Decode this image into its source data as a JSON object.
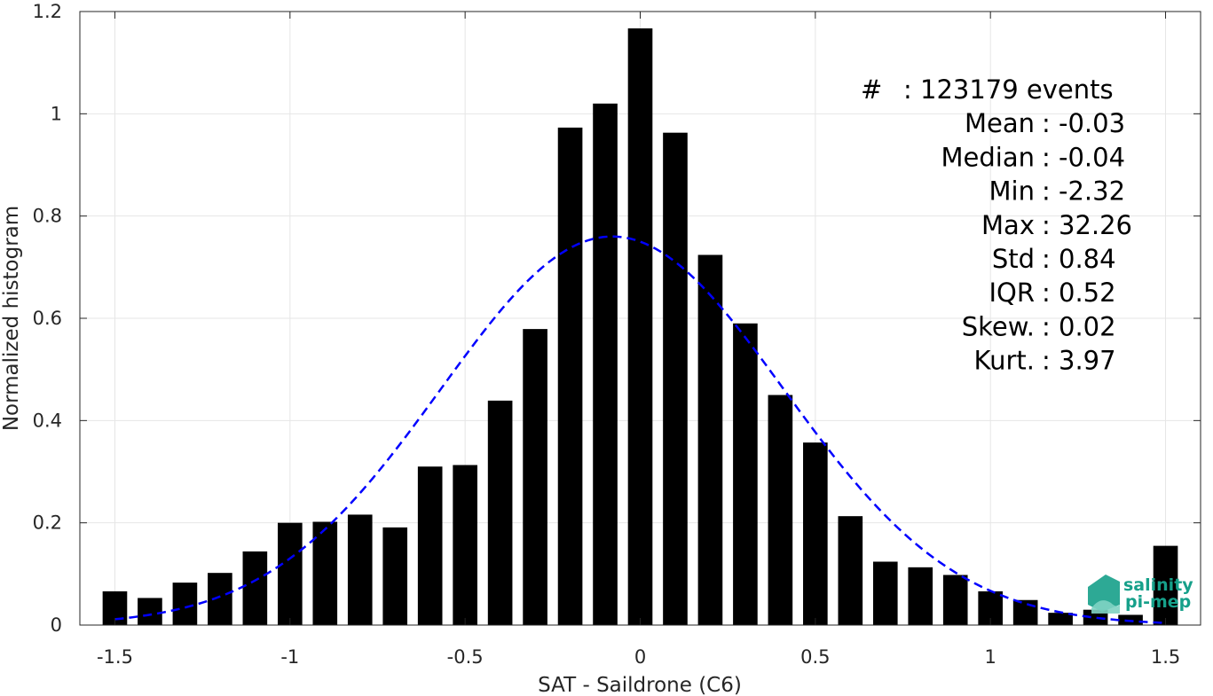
{
  "chart_data": {
    "type": "bar",
    "xlabel": "SAT - Saildrone (C6)",
    "ylabel": "Normalized histogram",
    "xlim": [
      -1.6,
      1.6
    ],
    "ylim": [
      0,
      1.2
    ],
    "x_ticks": [
      "-1.5",
      "-1",
      "-0.5",
      "0",
      "0.5",
      "1",
      "1.5"
    ],
    "x_tick_values": [
      -1.5,
      -1,
      -0.5,
      0,
      0.5,
      1,
      1.5
    ],
    "y_ticks": [
      "0",
      "0.2",
      "0.4",
      "0.6",
      "0.8",
      "1",
      "1.2"
    ],
    "y_tick_values": [
      0,
      0.2,
      0.4,
      0.6,
      0.8,
      1.0,
      1.2
    ],
    "grid": true,
    "bar_width": 0.07,
    "bars": {
      "x": [
        -1.5,
        -1.4,
        -1.3,
        -1.2,
        -1.1,
        -1.0,
        -0.9,
        -0.8,
        -0.7,
        -0.6,
        -0.5,
        -0.4,
        -0.3,
        -0.2,
        -0.1,
        0.0,
        0.1,
        0.2,
        0.3,
        0.4,
        0.5,
        0.6,
        0.7,
        0.8,
        0.9,
        1.0,
        1.1,
        1.2,
        1.3,
        1.4,
        1.5
      ],
      "values": [
        0.066,
        0.053,
        0.083,
        0.102,
        0.144,
        0.2,
        0.202,
        0.216,
        0.191,
        0.31,
        0.313,
        0.439,
        0.579,
        0.973,
        1.02,
        1.167,
        0.963,
        0.724,
        0.59,
        0.45,
        0.357,
        0.213,
        0.124,
        0.113,
        0.098,
        0.066,
        0.049,
        0.024,
        0.03,
        0.02,
        0.155
      ],
      "color": "#000000"
    },
    "fit_curve": {
      "style": "dashed",
      "color": "#0000ff",
      "mean": -0.08,
      "std": 0.49,
      "peak": 0.76,
      "x_range": [
        -1.5,
        1.5
      ]
    },
    "annotations": [
      {
        "label": "#  ",
        "value": "123179 events"
      },
      {
        "label": "Mean",
        "value": "-0.03"
      },
      {
        "label": "Median",
        "value": "-0.04"
      },
      {
        "label": "Min",
        "value": "-2.32"
      },
      {
        "label": "Max",
        "value": "32.26"
      },
      {
        "label": "Std",
        "value": "0.84"
      },
      {
        "label": "IQR",
        "value": "0.52"
      },
      {
        "label": "Skew.",
        "value": "0.02"
      },
      {
        "label": "Kurt.",
        "value": "3.97"
      }
    ]
  },
  "logo": {
    "line1": "salinity",
    "line2": "pi-mep",
    "color": "#16a08a"
  }
}
